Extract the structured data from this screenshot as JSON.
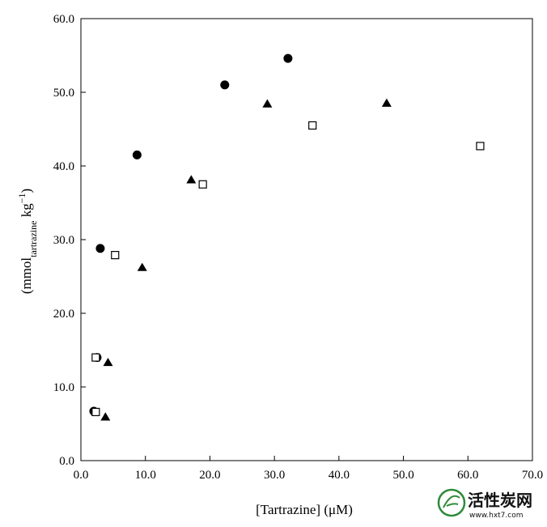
{
  "chart_data": {
    "type": "scatter",
    "xlabel": "[Tartrazine] (μM)",
    "ylabel": {
      "main": "(mmol",
      "subscript": "tartrazine",
      "unit": " kg",
      "superscript": "−1",
      "close": ")"
    },
    "xlim": [
      0,
      70
    ],
    "ylim": [
      0,
      60
    ],
    "x_ticks": [
      "0.0",
      "10.0",
      "20.0",
      "30.0",
      "40.0",
      "50.0",
      "60.0",
      "70.0"
    ],
    "y_ticks": [
      "0.0",
      "10.0",
      "20.0",
      "30.0",
      "40.0",
      "50.0",
      "60.0"
    ],
    "grid": false,
    "series": [
      {
        "marker": "circle-filled",
        "points": [
          {
            "x": 2.0,
            "y": 6.7
          },
          {
            "x": 2.5,
            "y": 14.0
          },
          {
            "x": 3.0,
            "y": 28.8
          },
          {
            "x": 8.7,
            "y": 41.5
          },
          {
            "x": 22.3,
            "y": 51.0
          },
          {
            "x": 32.1,
            "y": 54.6
          }
        ]
      },
      {
        "marker": "triangle-filled",
        "points": [
          {
            "x": 3.8,
            "y": 5.9
          },
          {
            "x": 4.2,
            "y": 13.3
          },
          {
            "x": 9.5,
            "y": 26.2
          },
          {
            "x": 17.1,
            "y": 38.1
          },
          {
            "x": 28.9,
            "y": 48.4
          },
          {
            "x": 47.4,
            "y": 48.5
          }
        ]
      },
      {
        "marker": "square-open",
        "points": [
          {
            "x": 2.3,
            "y": 6.6
          },
          {
            "x": 2.3,
            "y": 14.0
          },
          {
            "x": 5.3,
            "y": 27.9
          },
          {
            "x": 18.9,
            "y": 37.5
          },
          {
            "x": 35.9,
            "y": 45.5
          },
          {
            "x": 61.9,
            "y": 42.7
          }
        ]
      }
    ]
  },
  "watermark": {
    "logo_text": "活性炭网",
    "url": "www.hxt7.com",
    "color": "#2e8b3a"
  }
}
